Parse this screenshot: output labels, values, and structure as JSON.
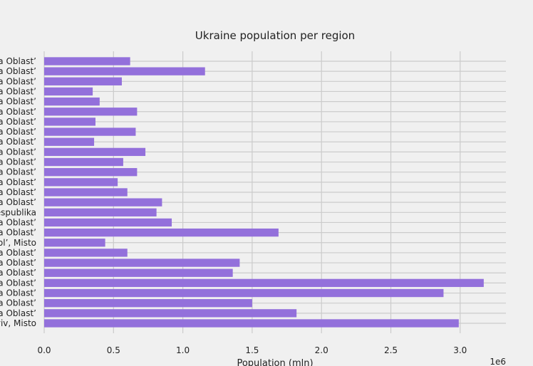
{
  "chart_data": {
    "type": "bar",
    "orientation": "horizontal",
    "title": "Ukraine population per region",
    "xlabel": "Population (mln)",
    "ylabel": "",
    "x_scale_label": "1e6",
    "xlim": [
      0,
      3.33
    ],
    "x_ticks": [
      "0.0",
      "0.5",
      "1.0",
      "1.5",
      "2.0",
      "2.5",
      "3.0"
    ],
    "x_tick_values": [
      0,
      0.5,
      1.0,
      1.5,
      2.0,
      2.5,
      3.0
    ],
    "grid": true,
    "bar_color": "#9370db",
    "categories": [
      "a Oblast’",
      "a Oblast’",
      "a Oblast’",
      "a Oblast’",
      "a Oblast’",
      "a Oblast’",
      "a Oblast’",
      "a Oblast’",
      "a Oblast’",
      "a Oblast’",
      "a Oblast’",
      "a Oblast’",
      "a Oblast’",
      "a Oblast’",
      "a Oblast’",
      "espublika",
      "a Oblast’",
      "a Oblast’",
      "ol’, Misto",
      "a Oblast’",
      "a Oblast’",
      "a Oblast’",
      "a Oblast’",
      "a Oblast’",
      "a Oblast’",
      "a Oblast’",
      "yiv, Misto"
    ],
    "values": [
      0.62,
      1.16,
      0.56,
      0.35,
      0.4,
      0.67,
      0.37,
      0.66,
      0.36,
      0.73,
      0.57,
      0.67,
      0.53,
      0.6,
      0.85,
      0.81,
      0.92,
      1.69,
      0.44,
      0.6,
      1.41,
      1.36,
      3.17,
      2.88,
      1.5,
      1.82,
      2.99
    ]
  }
}
